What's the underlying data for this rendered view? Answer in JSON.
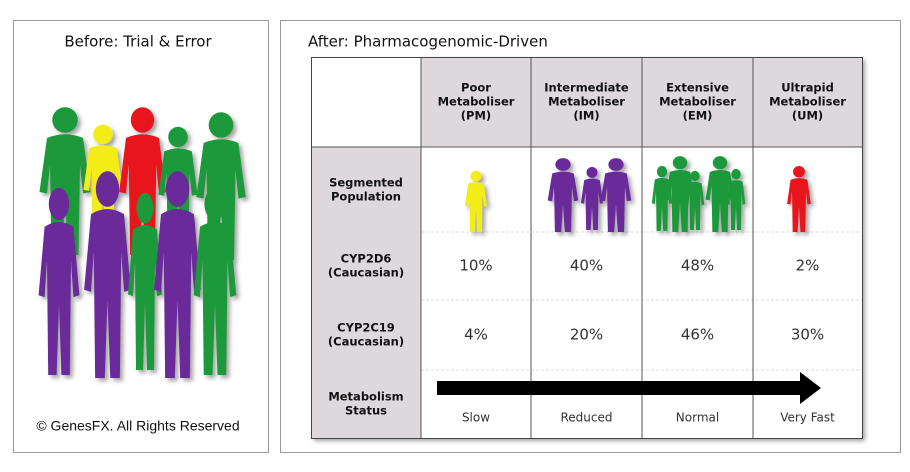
{
  "left_panel": {
    "title": "Before: Trial & Error",
    "copyright": "© GenesFX. All Rights Reserved"
  },
  "right_panel": {
    "title": "After: Pharmacogenomic-Driven",
    "table": {
      "columns": [
        [
          "Poor",
          "Metaboliser",
          "(PM)"
        ],
        [
          "Intermediate",
          "Metaboliser",
          "(IM)"
        ],
        [
          "Extensive",
          "Metaboliser",
          "(EM)"
        ],
        [
          "Ultrapid",
          "Metaboliser",
          "(UM)"
        ]
      ],
      "segmented_label": [
        "Segmented",
        "Population"
      ],
      "rows": [
        {
          "label": [
            "CYP2D6",
            "(Caucasian)"
          ],
          "cells": [
            "10%",
            "40%",
            "48%",
            "2%"
          ]
        },
        {
          "label": [
            "CYP2C19",
            "(Caucasian)"
          ],
          "cells": [
            "4%",
            "20%",
            "46%",
            "30%"
          ]
        }
      ],
      "status": {
        "label": [
          "Metabolism",
          "Status"
        ],
        "cells": [
          "Slow",
          "Reduced",
          "Normal",
          "Very Fast"
        ]
      }
    }
  }
}
